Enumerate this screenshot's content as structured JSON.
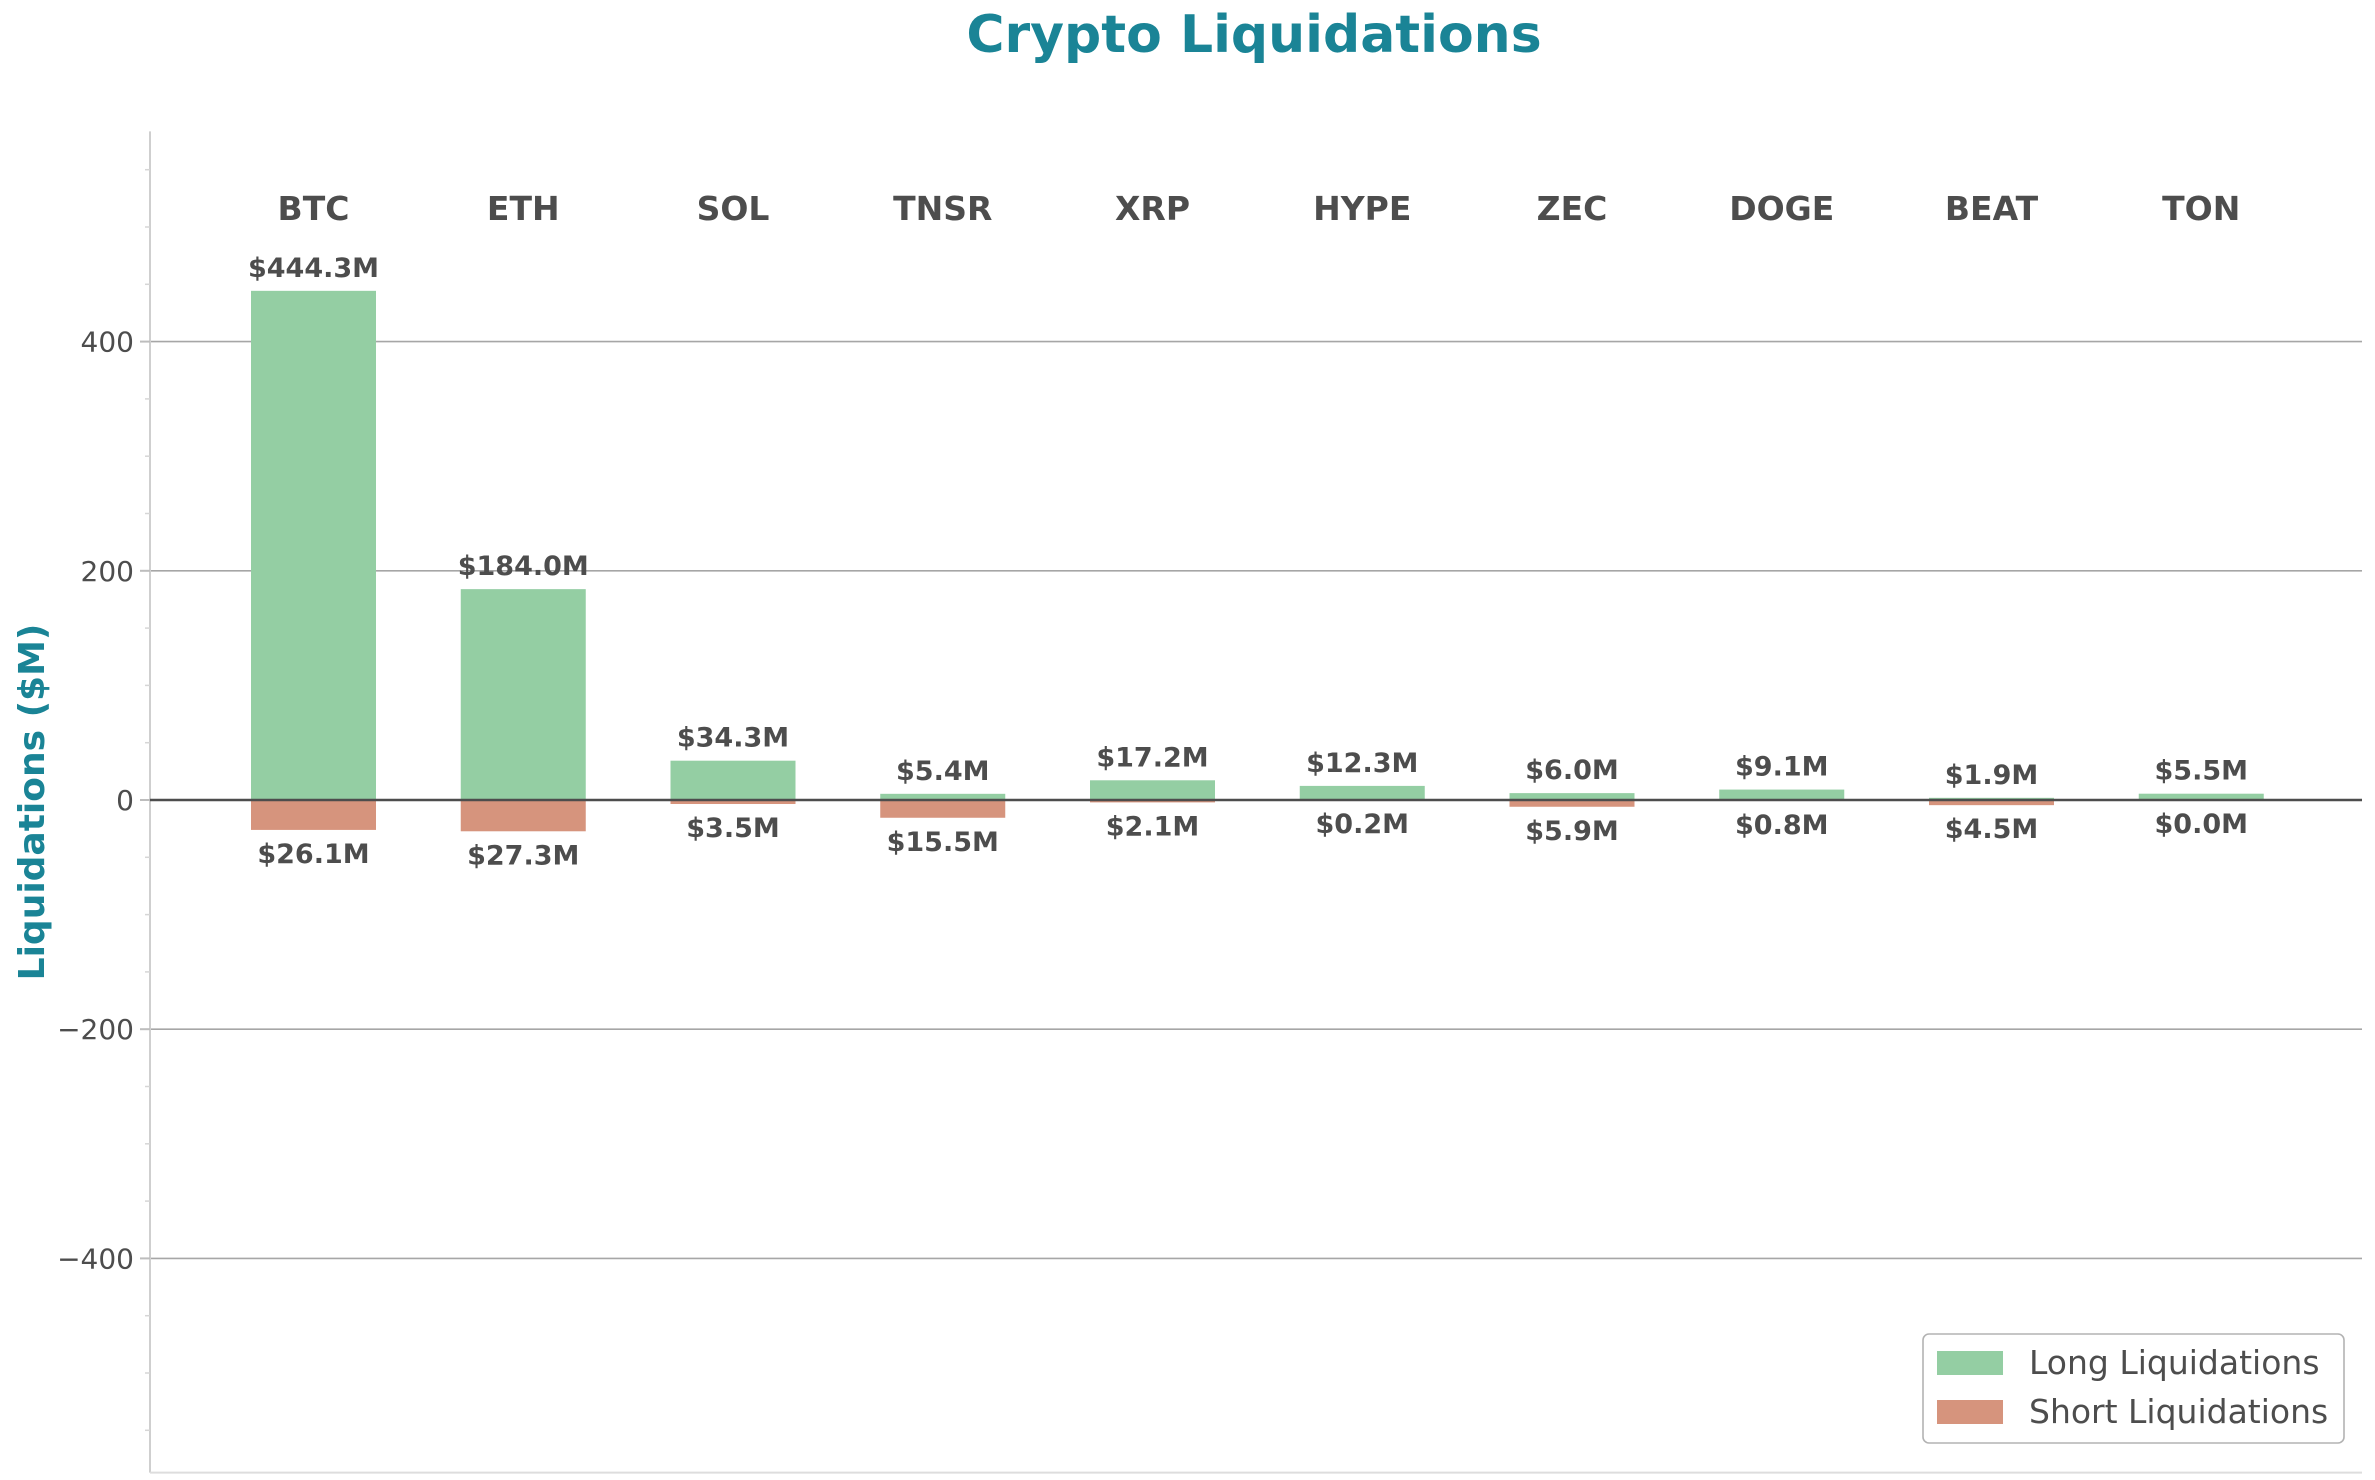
{
  "chart_data": {
    "type": "bar",
    "title": "Crypto Liquidations",
    "xlabel": "",
    "ylabel": "Liquidations ($M)",
    "ylim": [
      -580,
      580
    ],
    "yticks": [
      400,
      200,
      0,
      -200,
      -400
    ],
    "ytick_labels": [
      "400",
      "200",
      "0",
      "−200",
      "−400"
    ],
    "grid": true,
    "legend_position": "bottom-right",
    "categories": [
      "BTC",
      "ETH",
      "SOL",
      "TNSR",
      "XRP",
      "HYPE",
      "ZEC",
      "DOGE",
      "BEAT",
      "TON"
    ],
    "series": [
      {
        "name": "Long Liquidations",
        "color": "#94ceA3",
        "values": [
          444.3,
          184.0,
          34.3,
          5.4,
          17.2,
          12.3,
          6.0,
          9.1,
          1.9,
          5.5
        ],
        "labels": [
          "$444.3M",
          "$184.0M",
          "$34.3M",
          "$5.4M",
          "$17.2M",
          "$12.3M",
          "$6.0M",
          "$9.1M",
          "$1.9M",
          "$5.5M"
        ]
      },
      {
        "name": "Short Liquidations",
        "color": "#d6947d",
        "values": [
          -26.1,
          -27.3,
          -3.5,
          -15.5,
          -2.1,
          -0.2,
          -5.9,
          -0.8,
          -4.5,
          -0.0
        ],
        "labels": [
          "$26.1M",
          "$27.3M",
          "$3.5M",
          "$15.5M",
          "$2.1M",
          "$0.2M",
          "$5.9M",
          "$0.8M",
          "$4.5M",
          "$0.0M"
        ]
      }
    ],
    "colors": {
      "title": "#1a8496",
      "ylabel": "#1a8496",
      "text": "#4d4d4d",
      "grid": "#a6a6a6",
      "zero_line": "#4d4d4d"
    }
  }
}
